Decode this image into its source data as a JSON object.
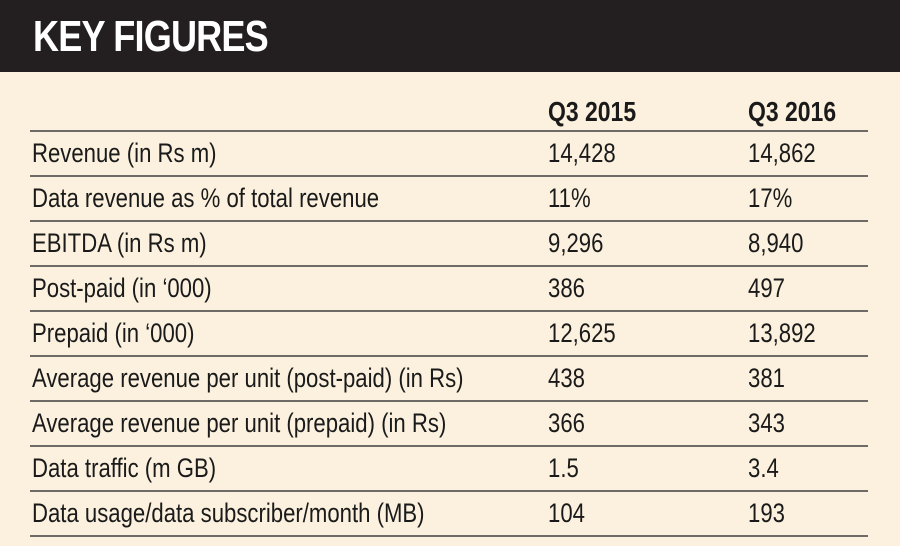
{
  "title": "KEY FIGURES",
  "columns": [
    "",
    "Q3 2015",
    "Q3 2016"
  ],
  "rows": [
    {
      "label": "Revenue (in Rs m)",
      "q3_2015": "14,428",
      "q3_2016": "14,862"
    },
    {
      "label": "Data revenue as % of total revenue",
      "q3_2015": "11%",
      "q3_2016": "17%"
    },
    {
      "label": "EBITDA (in Rs m)",
      "q3_2015": "9,296",
      "q3_2016": "8,940"
    },
    {
      "label": "Post-paid (in ‘000)",
      "q3_2015": "386",
      "q3_2016": "497"
    },
    {
      "label": "Prepaid (in ‘000)",
      "q3_2015": "12,625",
      "q3_2016": "13,892"
    },
    {
      "label": "Average revenue per unit (post-paid) (in Rs)",
      "q3_2015": "438",
      "q3_2016": "381"
    },
    {
      "label": "Average revenue per unit (prepaid) (in Rs)",
      "q3_2015": "366",
      "q3_2016": "343"
    },
    {
      "label": "Data traffic (m GB)",
      "q3_2015": "1.5",
      "q3_2016": "3.4"
    },
    {
      "label": "Data usage/data subscriber/month (MB)",
      "q3_2015": "104",
      "q3_2016": "193"
    }
  ],
  "colors": {
    "banner": "#231f20",
    "background": "#fbf1de",
    "rule": "#6e6a66"
  }
}
